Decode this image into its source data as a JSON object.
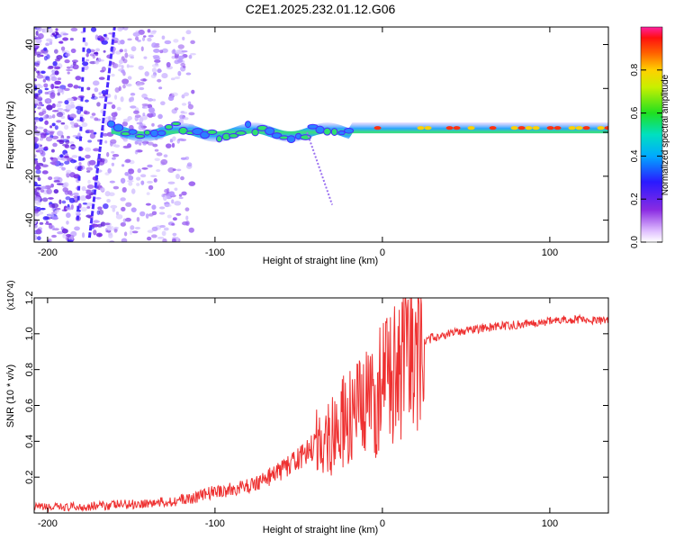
{
  "title": "C2E1.2025.232.01.12.G06",
  "colors": {
    "snr_line": "#ee3030",
    "track": "#4b2aff"
  },
  "chart_data": [
    {
      "type": "heatmap",
      "title": "C2E1.2025.232.01.12.G06",
      "xlabel": "Height of straight line (km)",
      "ylabel": "Frequency (Hz)",
      "xlim": [
        -208,
        135
      ],
      "ylim": [
        -50,
        48
      ],
      "xticks": [
        -200,
        -100,
        0,
        100
      ],
      "yticks": [
        40,
        20,
        0,
        -20,
        -40
      ],
      "xtick_labels": [
        "-200",
        "-100",
        "0",
        "100"
      ],
      "ytick_labels": [
        "40",
        "20",
        "0",
        "-20",
        "-40"
      ],
      "colorbar": {
        "label": "Normalized spectral amplitude",
        "range": [
          0,
          1
        ],
        "ticks": [
          0.0,
          0.2,
          0.4,
          0.6,
          0.8
        ],
        "tick_labels": [
          "0.0",
          "0.2",
          "0.4",
          "0.6",
          "0.8"
        ],
        "colormap": "rainbow (white/violet to red/magenta)"
      },
      "features": {
        "main_track": {
          "x_start": -162,
          "x_end": 135,
          "freq_center": 2
        },
        "slanted_line": {
          "x": [
            -175,
            -160
          ],
          "freq": [
            -48,
            48
          ]
        }
      }
    },
    {
      "type": "line",
      "xlabel": "Height of straight line (km)",
      "ylabel": "SNR (10 * v/v)",
      "y_multiplier": "(x10^4)",
      "xlim": [
        -208,
        135
      ],
      "ylim": [
        0,
        1.2
      ],
      "xticks": [
        -200,
        -100,
        0,
        100
      ],
      "yticks": [
        0.2,
        0.4,
        0.6,
        0.8,
        1.0,
        1.2
      ],
      "xtick_labels": [
        "-200",
        "-100",
        "0",
        "100"
      ],
      "ytick_labels": [
        "0.2",
        "0.4",
        "0.6",
        "0.8",
        "1.0",
        "1.2"
      ],
      "series": [
        {
          "name": "SNR",
          "x": [
            -208,
            -190,
            -170,
            -150,
            -130,
            -115,
            -100,
            -90,
            -80,
            -70,
            -60,
            -50,
            -40,
            -30,
            -20,
            -10,
            0,
            5,
            10,
            15,
            20,
            30,
            40,
            50,
            60,
            70,
            80,
            90,
            100,
            110,
            120,
            135
          ],
          "values": [
            0.03,
            0.03,
            0.04,
            0.05,
            0.06,
            0.08,
            0.12,
            0.13,
            0.15,
            0.19,
            0.24,
            0.3,
            0.38,
            0.45,
            0.52,
            0.58,
            0.7,
            0.82,
            0.75,
            0.85,
            0.92,
            0.98,
            1.0,
            1.02,
            1.03,
            1.04,
            1.05,
            1.06,
            1.07,
            1.08,
            1.08,
            1.07
          ]
        }
      ]
    }
  ]
}
